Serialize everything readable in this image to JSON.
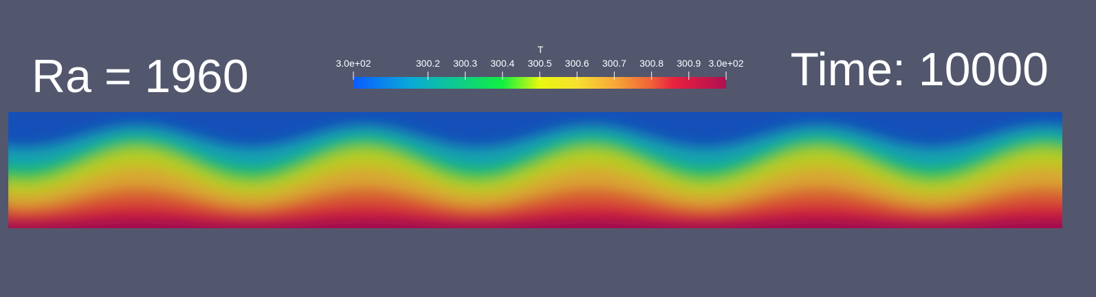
{
  "labels": {
    "left": "Ra = 1960",
    "right": "Time: 10000"
  },
  "colorbar": {
    "title": "T",
    "range": [
      300,
      301
    ],
    "ticks": [
      {
        "value": 300,
        "label": "3.0e+02"
      },
      300.2,
      300.3,
      300.4,
      300.5,
      300.6,
      300.7,
      300.8,
      300.9,
      {
        "value": 301,
        "label": "3.0e+02"
      }
    ]
  }
}
